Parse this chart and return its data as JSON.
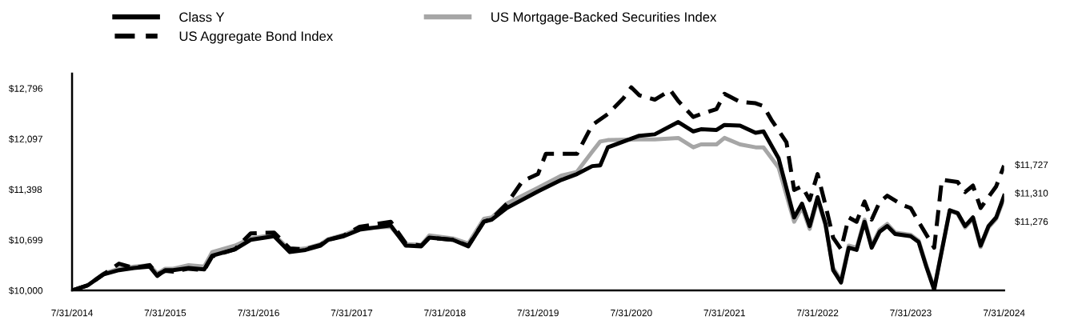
{
  "chart_data": {
    "type": "line",
    "series": [
      {
        "name": "Class Y",
        "color": "#000000",
        "line_style": "solid",
        "x": [
          "2014-07-31",
          "2014-09-30",
          "2014-11-30",
          "2015-01-31",
          "2015-03-31",
          "2015-05-31",
          "2015-06-30",
          "2015-07-31",
          "2015-08-31",
          "2015-10-31",
          "2015-12-31",
          "2016-01-31",
          "2016-04-30",
          "2016-06-30",
          "2016-09-30",
          "2016-11-30",
          "2017-01-31",
          "2017-03-31",
          "2017-04-30",
          "2017-06-30",
          "2017-08-31",
          "2017-12-31",
          "2018-02-28",
          "2018-04-30",
          "2018-05-31",
          "2018-08-31",
          "2018-10-31",
          "2018-12-31",
          "2019-01-31",
          "2019-03-31",
          "2019-07-31",
          "2019-10-31",
          "2019-12-31",
          "2020-02-29",
          "2020-03-31",
          "2020-04-30",
          "2020-08-31",
          "2020-10-31",
          "2021-01-31",
          "2021-03-31",
          "2021-04-30",
          "2021-06-30",
          "2021-07-31",
          "2021-09-30",
          "2021-11-30",
          "2021-12-31",
          "2022-02-28",
          "2022-04-30",
          "2022-05-31",
          "2022-06-30",
          "2022-07-31",
          "2022-08-31",
          "2022-09-30",
          "2022-10-31",
          "2022-11-30",
          "2022-12-31",
          "2023-01-31",
          "2023-02-28",
          "2023-03-31",
          "2023-04-30",
          "2023-05-31",
          "2023-07-31",
          "2023-08-31",
          "2023-09-30",
          "2023-10-31",
          "2023-12-31",
          "2024-01-31",
          "2024-02-29",
          "2024-03-31",
          "2024-04-30",
          "2024-05-31",
          "2024-06-30",
          "2024-07-31"
        ],
        "values": [
          10000,
          10070,
          10220,
          10280,
          10310,
          10330,
          10200,
          10280,
          10280,
          10310,
          10290,
          10480,
          10570,
          10700,
          10750,
          10530,
          10560,
          10620,
          10700,
          10750,
          10840,
          10900,
          10620,
          10610,
          10730,
          10700,
          10610,
          10950,
          10980,
          11140,
          11370,
          11530,
          11610,
          11720,
          11730,
          11980,
          12140,
          12160,
          12330,
          12200,
          12230,
          12220,
          12290,
          12280,
          12180,
          12200,
          11830,
          11010,
          11200,
          10890,
          11290,
          10920,
          10280,
          10110,
          10590,
          10560,
          10950,
          10590,
          10810,
          10890,
          10780,
          10750,
          10670,
          10330,
          10010,
          11110,
          11070,
          10890,
          11010,
          10620,
          10890,
          11010,
          11310
        ]
      },
      {
        "name": "US Mortgage-Backed Securities Index",
        "color": "#a6a6a6",
        "line_style": "solid",
        "x": [
          "2014-07-31",
          "2014-09-30",
          "2014-11-30",
          "2015-01-31",
          "2015-03-31",
          "2015-05-31",
          "2015-06-30",
          "2015-07-31",
          "2015-08-31",
          "2015-10-31",
          "2015-12-31",
          "2016-01-31",
          "2016-04-30",
          "2016-06-30",
          "2016-09-30",
          "2016-11-30",
          "2017-01-31",
          "2017-03-31",
          "2017-04-30",
          "2017-06-30",
          "2017-08-31",
          "2017-12-31",
          "2018-02-28",
          "2018-04-30",
          "2018-05-31",
          "2018-08-31",
          "2018-10-31",
          "2018-12-31",
          "2019-01-31",
          "2019-03-31",
          "2019-07-31",
          "2019-10-31",
          "2019-12-31",
          "2020-02-29",
          "2020-03-31",
          "2020-04-30",
          "2020-08-31",
          "2020-10-31",
          "2021-01-31",
          "2021-03-31",
          "2021-04-30",
          "2021-06-30",
          "2021-07-31",
          "2021-09-30",
          "2021-11-30",
          "2021-12-31",
          "2022-02-28",
          "2022-04-30",
          "2022-05-31",
          "2022-06-30",
          "2022-07-31",
          "2022-08-31",
          "2022-09-30",
          "2022-10-31",
          "2022-11-30",
          "2022-12-31",
          "2023-01-31",
          "2023-02-28",
          "2023-03-31",
          "2023-04-30",
          "2023-05-31",
          "2023-07-31",
          "2023-08-31",
          "2023-09-30",
          "2023-10-31",
          "2023-12-31",
          "2024-01-31",
          "2024-02-29",
          "2024-03-31",
          "2024-04-30",
          "2024-05-31",
          "2024-06-30",
          "2024-07-31"
        ],
        "values": [
          10000,
          10070,
          10230,
          10300,
          10330,
          10350,
          10230,
          10300,
          10300,
          10350,
          10330,
          10530,
          10620,
          10720,
          10770,
          10560,
          10580,
          10640,
          10710,
          10770,
          10860,
          10880,
          10640,
          10630,
          10760,
          10720,
          10650,
          10990,
          11010,
          11200,
          11420,
          11590,
          11640,
          11920,
          12060,
          12080,
          12090,
          12090,
          12110,
          11980,
          12020,
          12020,
          12110,
          12020,
          11980,
          11980,
          11700,
          10950,
          11150,
          10850,
          11260,
          10900,
          10310,
          10140,
          10620,
          10590,
          10980,
          10620,
          10840,
          10920,
          10800,
          10770,
          10690,
          10350,
          10030,
          11100,
          11060,
          10870,
          10990,
          10600,
          10870,
          10990,
          11276
        ]
      },
      {
        "name": "US Aggregate Bond Index",
        "color": "#000000",
        "line_style": "dashed",
        "x": [
          "2014-07-31",
          "2014-09-30",
          "2014-11-30",
          "2015-01-31",
          "2015-03-31",
          "2015-05-31",
          "2015-06-30",
          "2015-07-31",
          "2015-08-31",
          "2015-10-31",
          "2015-12-31",
          "2016-01-31",
          "2016-04-30",
          "2016-06-30",
          "2016-09-30",
          "2016-11-30",
          "2017-01-31",
          "2017-03-31",
          "2017-04-30",
          "2017-06-30",
          "2017-08-31",
          "2017-12-31",
          "2018-02-28",
          "2018-04-30",
          "2018-05-31",
          "2018-08-31",
          "2018-10-31",
          "2018-12-31",
          "2019-01-31",
          "2019-03-31",
          "2019-05-31",
          "2019-07-31",
          "2019-08-31",
          "2019-10-31",
          "2019-12-31",
          "2020-02-29",
          "2020-04-30",
          "2020-06-30",
          "2020-07-31",
          "2020-08-31",
          "2020-10-31",
          "2020-12-31",
          "2021-01-31",
          "2021-03-31",
          "2021-04-30",
          "2021-06-30",
          "2021-07-31",
          "2021-09-30",
          "2021-11-30",
          "2021-12-31",
          "2022-01-31",
          "2022-03-31",
          "2022-04-30",
          "2022-05-31",
          "2022-06-30",
          "2022-07-31",
          "2022-08-31",
          "2022-09-30",
          "2022-10-31",
          "2022-11-30",
          "2022-12-31",
          "2023-01-31",
          "2023-02-28",
          "2023-03-31",
          "2023-04-30",
          "2023-06-30",
          "2023-07-31",
          "2023-08-31",
          "2023-10-31",
          "2023-11-30",
          "2024-01-31",
          "2024-02-29",
          "2024-03-31",
          "2024-04-30",
          "2024-06-30",
          "2024-07-31"
        ],
        "values": [
          10000,
          10070,
          10220,
          10370,
          10310,
          10350,
          10220,
          10270,
          10260,
          10300,
          10280,
          10470,
          10570,
          10790,
          10800,
          10580,
          10570,
          10630,
          10700,
          10760,
          10880,
          10950,
          10650,
          10620,
          10730,
          10700,
          10620,
          10950,
          10990,
          11200,
          11510,
          11610,
          11890,
          11890,
          11890,
          12290,
          12440,
          12660,
          12810,
          12700,
          12640,
          12770,
          12620,
          12400,
          12440,
          12510,
          12720,
          12610,
          12590,
          12550,
          12360,
          12050,
          11390,
          11440,
          11250,
          11610,
          11180,
          10730,
          10570,
          11010,
          10950,
          11230,
          10980,
          11220,
          11310,
          11180,
          11140,
          10950,
          10590,
          11530,
          11500,
          11360,
          11450,
          11140,
          11440,
          11727
        ]
      }
    ],
    "ylim": [
      10000,
      13000
    ],
    "yticks": [
      {
        "value": 10000,
        "label": "$10,000"
      },
      {
        "value": 10699,
        "label": "$10,699"
      },
      {
        "value": 11398,
        "label": "$11,398"
      },
      {
        "value": 12097,
        "label": "$12,097"
      },
      {
        "value": 12796,
        "label": "$12,796"
      }
    ],
    "xlim": [
      "2014-07-31",
      "2024-07-31"
    ],
    "xticks": [
      {
        "value": "2014-07-31",
        "label": "7/31/2014"
      },
      {
        "value": "2015-07-31",
        "label": "7/31/2015"
      },
      {
        "value": "2016-07-31",
        "label": "7/31/2016"
      },
      {
        "value": "2017-07-31",
        "label": "7/31/2017"
      },
      {
        "value": "2018-07-31",
        "label": "7/31/2018"
      },
      {
        "value": "2019-07-31",
        "label": "7/31/2019"
      },
      {
        "value": "2020-07-31",
        "label": "7/31/2020"
      },
      {
        "value": "2021-07-31",
        "label": "7/31/2021"
      },
      {
        "value": "2022-07-31",
        "label": "7/31/2022"
      },
      {
        "value": "2023-07-31",
        "label": "7/31/2023"
      },
      {
        "value": "2024-07-31",
        "label": "7/31/2024"
      }
    ],
    "annotations": [
      "$11,727",
      "$11,310",
      "$11,276"
    ],
    "grid": false,
    "legend": "top",
    "marker": "none"
  }
}
